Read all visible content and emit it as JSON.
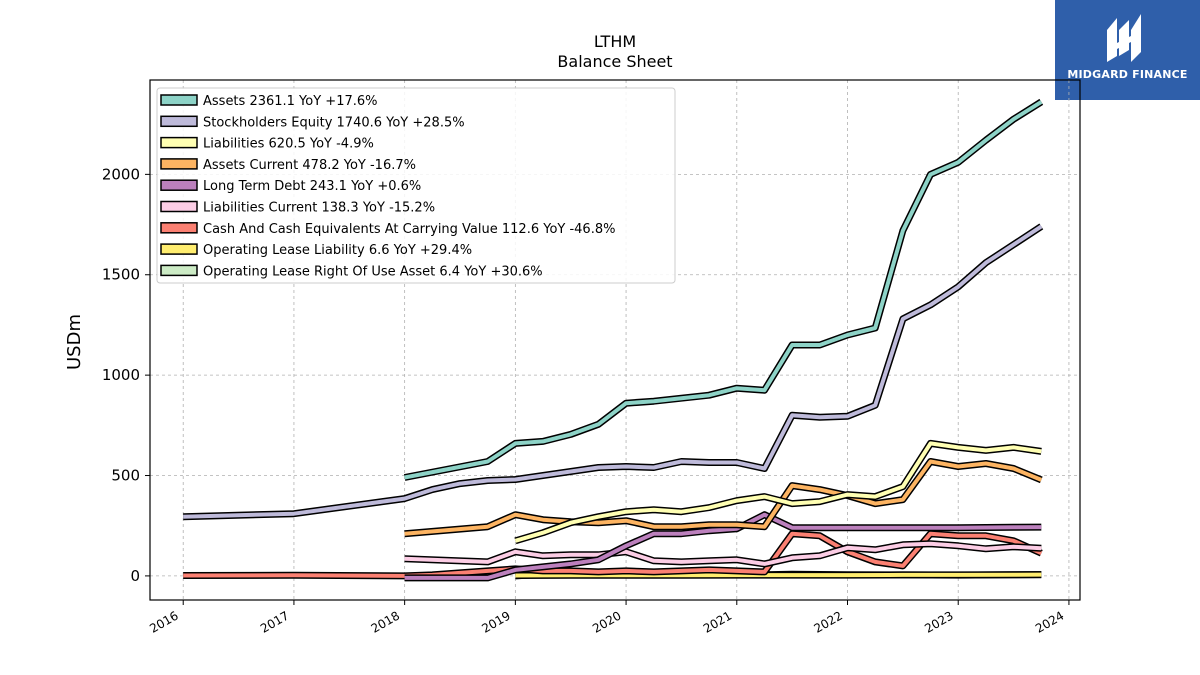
{
  "header": {
    "title": "LTHM",
    "subtitle": "Balance  Sheet"
  },
  "brand": {
    "logo_text": "MIDGARD FINANCE",
    "logo_color": "#2f5faa"
  },
  "chart_data": {
    "type": "line",
    "title": "LTHM",
    "subtitle": "Balance  Sheet",
    "xlabel": "",
    "ylabel": "USDm",
    "xlim": [
      2015.7,
      2024.1
    ],
    "ylim": [
      -120,
      2470
    ],
    "yticks": [
      0,
      500,
      1000,
      1500,
      2000
    ],
    "xticks": [
      "2016",
      "2017",
      "2018",
      "2019",
      "2020",
      "2021",
      "2022",
      "2023",
      "2024"
    ],
    "grid": true,
    "legend_position": "top-left",
    "series": [
      {
        "name": "Assets",
        "legend_label": "Assets  2361.1 YoY +17.6%",
        "color": "#8dd3c7",
        "points": [
          [
            2018.0,
            490
          ],
          [
            2018.75,
            570
          ],
          [
            2019.0,
            660
          ],
          [
            2019.25,
            670
          ],
          [
            2019.5,
            705
          ],
          [
            2019.75,
            755
          ],
          [
            2020.0,
            860
          ],
          [
            2020.25,
            870
          ],
          [
            2020.5,
            885
          ],
          [
            2020.75,
            900
          ],
          [
            2021.0,
            935
          ],
          [
            2021.25,
            925
          ],
          [
            2021.5,
            1150
          ],
          [
            2021.75,
            1150
          ],
          [
            2022.0,
            1200
          ],
          [
            2022.25,
            1235
          ],
          [
            2022.5,
            1720
          ],
          [
            2022.75,
            2000
          ],
          [
            2023.0,
            2060
          ],
          [
            2023.25,
            2170
          ],
          [
            2023.5,
            2275
          ],
          [
            2023.75,
            2361
          ]
        ]
      },
      {
        "name": "Stockholders Equity",
        "legend_label": "Stockholders Equity  1740.6 YoY +28.5%",
        "color": "#bebada",
        "points": [
          [
            2016.0,
            295
          ],
          [
            2017.0,
            310
          ],
          [
            2018.0,
            385
          ],
          [
            2018.25,
            430
          ],
          [
            2018.5,
            460
          ],
          [
            2018.75,
            475
          ],
          [
            2019.0,
            480
          ],
          [
            2019.25,
            500
          ],
          [
            2019.5,
            520
          ],
          [
            2019.75,
            540
          ],
          [
            2020.0,
            545
          ],
          [
            2020.25,
            540
          ],
          [
            2020.5,
            570
          ],
          [
            2020.75,
            565
          ],
          [
            2021.0,
            565
          ],
          [
            2021.25,
            535
          ],
          [
            2021.5,
            800
          ],
          [
            2021.75,
            790
          ],
          [
            2022.0,
            795
          ],
          [
            2022.25,
            850
          ],
          [
            2022.5,
            1280
          ],
          [
            2022.75,
            1350
          ],
          [
            2023.0,
            1440
          ],
          [
            2023.25,
            1560
          ],
          [
            2023.5,
            1650
          ],
          [
            2023.75,
            1741
          ]
        ]
      },
      {
        "name": "Liabilities",
        "legend_label": "Liabilities  620.5 YoY -4.9%",
        "color": "#ffffb3",
        "points": [
          [
            2019.0,
            175
          ],
          [
            2019.25,
            215
          ],
          [
            2019.5,
            265
          ],
          [
            2019.75,
            295
          ],
          [
            2020.0,
            320
          ],
          [
            2020.25,
            330
          ],
          [
            2020.5,
            320
          ],
          [
            2020.75,
            340
          ],
          [
            2021.0,
            375
          ],
          [
            2021.25,
            395
          ],
          [
            2021.5,
            360
          ],
          [
            2021.75,
            370
          ],
          [
            2022.0,
            405
          ],
          [
            2022.25,
            395
          ],
          [
            2022.5,
            445
          ],
          [
            2022.75,
            660
          ],
          [
            2023.0,
            640
          ],
          [
            2023.25,
            625
          ],
          [
            2023.5,
            640
          ],
          [
            2023.75,
            620
          ]
        ]
      },
      {
        "name": "Assets Current",
        "legend_label": "Assets Current  478.2 YoY -16.7%",
        "color": "#fdb462",
        "points": [
          [
            2018.0,
            210
          ],
          [
            2018.75,
            245
          ],
          [
            2019.0,
            305
          ],
          [
            2019.25,
            280
          ],
          [
            2019.5,
            270
          ],
          [
            2019.75,
            265
          ],
          [
            2020.0,
            275
          ],
          [
            2020.25,
            245
          ],
          [
            2020.5,
            245
          ],
          [
            2020.75,
            255
          ],
          [
            2021.0,
            255
          ],
          [
            2021.25,
            245
          ],
          [
            2021.5,
            450
          ],
          [
            2021.75,
            430
          ],
          [
            2022.0,
            400
          ],
          [
            2022.25,
            360
          ],
          [
            2022.5,
            380
          ],
          [
            2022.75,
            570
          ],
          [
            2023.0,
            545
          ],
          [
            2023.25,
            560
          ],
          [
            2023.5,
            535
          ],
          [
            2023.75,
            478
          ]
        ]
      },
      {
        "name": "Long Term Debt",
        "legend_label": "Long Term Debt  243.1 YoY +0.6%",
        "color": "#bc80bd",
        "points": [
          [
            2018.0,
            -10
          ],
          [
            2018.75,
            -10
          ],
          [
            2019.0,
            30
          ],
          [
            2019.25,
            45
          ],
          [
            2019.5,
            60
          ],
          [
            2019.75,
            80
          ],
          [
            2020.0,
            150
          ],
          [
            2020.25,
            210
          ],
          [
            2020.5,
            210
          ],
          [
            2020.75,
            225
          ],
          [
            2021.0,
            235
          ],
          [
            2021.25,
            305
          ],
          [
            2021.5,
            240
          ],
          [
            2021.75,
            240
          ],
          [
            2022.0,
            240
          ],
          [
            2022.25,
            240
          ],
          [
            2022.5,
            240
          ],
          [
            2022.75,
            240
          ],
          [
            2023.0,
            240
          ],
          [
            2023.25,
            241
          ],
          [
            2023.5,
            242
          ],
          [
            2023.75,
            243
          ]
        ]
      },
      {
        "name": "Liabilities Current",
        "legend_label": "Liabilities Current  138.3 YoY -15.2%",
        "color": "#fccde5",
        "points": [
          [
            2018.0,
            85
          ],
          [
            2018.75,
            70
          ],
          [
            2019.0,
            120
          ],
          [
            2019.25,
            100
          ],
          [
            2019.5,
            105
          ],
          [
            2019.75,
            105
          ],
          [
            2020.0,
            120
          ],
          [
            2020.25,
            75
          ],
          [
            2020.5,
            70
          ],
          [
            2020.75,
            75
          ],
          [
            2021.0,
            80
          ],
          [
            2021.25,
            60
          ],
          [
            2021.5,
            90
          ],
          [
            2021.75,
            100
          ],
          [
            2022.0,
            140
          ],
          [
            2022.25,
            130
          ],
          [
            2022.5,
            155
          ],
          [
            2022.75,
            160
          ],
          [
            2023.0,
            150
          ],
          [
            2023.25,
            135
          ],
          [
            2023.5,
            145
          ],
          [
            2023.75,
            138
          ]
        ]
      },
      {
        "name": "Cash And Cash Equivalents At Carrying Value",
        "legend_label": "Cash And Cash Equivalents At Carrying Value  112.6 YoY -46.8%",
        "color": "#fb8072",
        "points": [
          [
            2016.0,
            2
          ],
          [
            2017.0,
            3
          ],
          [
            2018.0,
            0
          ],
          [
            2018.25,
            5
          ],
          [
            2018.5,
            15
          ],
          [
            2018.75,
            25
          ],
          [
            2019.0,
            35
          ],
          [
            2019.25,
            25
          ],
          [
            2019.5,
            25
          ],
          [
            2019.75,
            20
          ],
          [
            2020.0,
            25
          ],
          [
            2020.25,
            20
          ],
          [
            2020.5,
            25
          ],
          [
            2020.75,
            30
          ],
          [
            2021.0,
            25
          ],
          [
            2021.25,
            20
          ],
          [
            2021.5,
            210
          ],
          [
            2021.75,
            200
          ],
          [
            2022.0,
            120
          ],
          [
            2022.25,
            70
          ],
          [
            2022.5,
            50
          ],
          [
            2022.75,
            210
          ],
          [
            2023.0,
            200
          ],
          [
            2023.25,
            200
          ],
          [
            2023.5,
            175
          ],
          [
            2023.75,
            113
          ]
        ]
      },
      {
        "name": "Operating Lease Liability",
        "legend_label": "Operating Lease Liability  6.6 YoY +29.4%",
        "color": "#ffed6f",
        "points": [
          [
            2019.0,
            2
          ],
          [
            2019.5,
            3
          ],
          [
            2020.0,
            3
          ],
          [
            2020.5,
            3
          ],
          [
            2021.0,
            4
          ],
          [
            2021.5,
            4
          ],
          [
            2022.0,
            4
          ],
          [
            2022.5,
            5
          ],
          [
            2023.0,
            5
          ],
          [
            2023.5,
            6
          ],
          [
            2023.75,
            6.6
          ]
        ]
      },
      {
        "name": "Operating Lease Right Of Use Asset",
        "legend_label": "Operating Lease Right Of Use Asset  6.4 YoY +30.6%",
        "color": "#ccebc5",
        "points": [
          [
            2019.0,
            0
          ],
          [
            2019.25,
            8
          ],
          [
            2019.5,
            10
          ],
          [
            2020.0,
            8
          ],
          [
            2020.5,
            6
          ],
          [
            2021.0,
            5
          ],
          [
            2021.25,
            6
          ],
          [
            2021.5,
            8
          ],
          [
            2022.0,
            6
          ],
          [
            2022.5,
            5
          ],
          [
            2023.0,
            4
          ],
          [
            2023.5,
            6
          ],
          [
            2023.75,
            6.4
          ]
        ]
      }
    ]
  }
}
